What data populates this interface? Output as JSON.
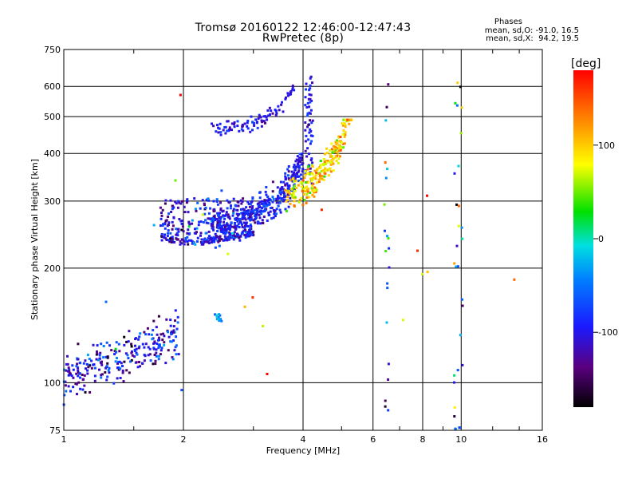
{
  "header": {
    "title_line1": "Tromsø 20160122 12:46:00-12:47:43",
    "title_line2": "RwPretec (8p)"
  },
  "stats": {
    "heading": "Phases",
    "o_line": "mean, sd,O: -91.0, 16.5",
    "x_line": "mean, sd,X:  94.2, 19.5"
  },
  "colorbar": {
    "unit_label": "[deg]",
    "ticks": [
      "100",
      "0",
      "-100"
    ],
    "tick_values": [
      100,
      0,
      -100
    ],
    "range": [
      -180,
      180
    ]
  },
  "chart_data": {
    "type": "scatter",
    "xlabel": "Frequency [MHz]",
    "ylabel": "Stationary phase Virtual Height [km]",
    "x_scale": "log",
    "y_scale": "log",
    "xlim": [
      1,
      16
    ],
    "ylim": [
      75,
      750
    ],
    "x_ticks": [
      1,
      2,
      4,
      6,
      8,
      10,
      16
    ],
    "x_tick_labels": [
      "1",
      "2",
      "4",
      "6",
      "8",
      "10",
      "16"
    ],
    "y_ticks": [
      75,
      100,
      200,
      300,
      400,
      500,
      600,
      750
    ],
    "y_tick_labels": [
      "75",
      "100",
      "200",
      "300",
      "400",
      "500",
      "600",
      "750"
    ],
    "grid": true,
    "color_by": "phase [deg]",
    "point_groups": [
      {
        "x_range": [
          1.0,
          1.95
        ],
        "y_range": [
          95,
          160
        ],
        "n": 260,
        "shape": "lowband",
        "phase_mean": -105,
        "phase_sd": 35
      },
      {
        "x_range": [
          1.75,
          3.0
        ],
        "y_range": [
          222,
          305
        ],
        "n": 320,
        "shape": "flag",
        "phase_mean": -100,
        "phase_sd": 30
      },
      {
        "x_range": [
          2.3,
          4.25
        ],
        "y_range": [
          225,
          640
        ],
        "n": 480,
        "shape": "o_trace",
        "phase_mean": -95,
        "phase_sd": 20
      },
      {
        "x_range": [
          2.35,
          3.8
        ],
        "y_range": [
          460,
          590
        ],
        "n": 90,
        "shape": "upper_arc",
        "phase_mean": -100,
        "phase_sd": 15
      },
      {
        "x_range": [
          3.6,
          5.3
        ],
        "y_range": [
          255,
          490
        ],
        "n": 260,
        "shape": "x_trace",
        "phase_mean": 94,
        "phase_sd": 30
      },
      {
        "x_range": [
          2.4,
          2.5
        ],
        "y_range": [
          145,
          152
        ],
        "n": 12,
        "shape": "blob",
        "phase_mean": -40,
        "phase_sd": 20
      },
      {
        "x_range": [
          6.4,
          6.6
        ],
        "y_range": [
          80,
          620
        ],
        "n": 20,
        "shape": "column",
        "phase_mean": -60,
        "phase_sd": 80
      },
      {
        "x_range": [
          9.6,
          10.1
        ],
        "y_range": [
          75,
          620
        ],
        "n": 30,
        "shape": "column",
        "phase_mean": -40,
        "phase_sd": 90
      },
      {
        "x_range": [
          1.1,
          14.8
        ],
        "y_range": [
          90,
          620
        ],
        "n": 24,
        "shape": "sparse",
        "phase_mean": 60,
        "phase_sd": 90
      }
    ]
  }
}
